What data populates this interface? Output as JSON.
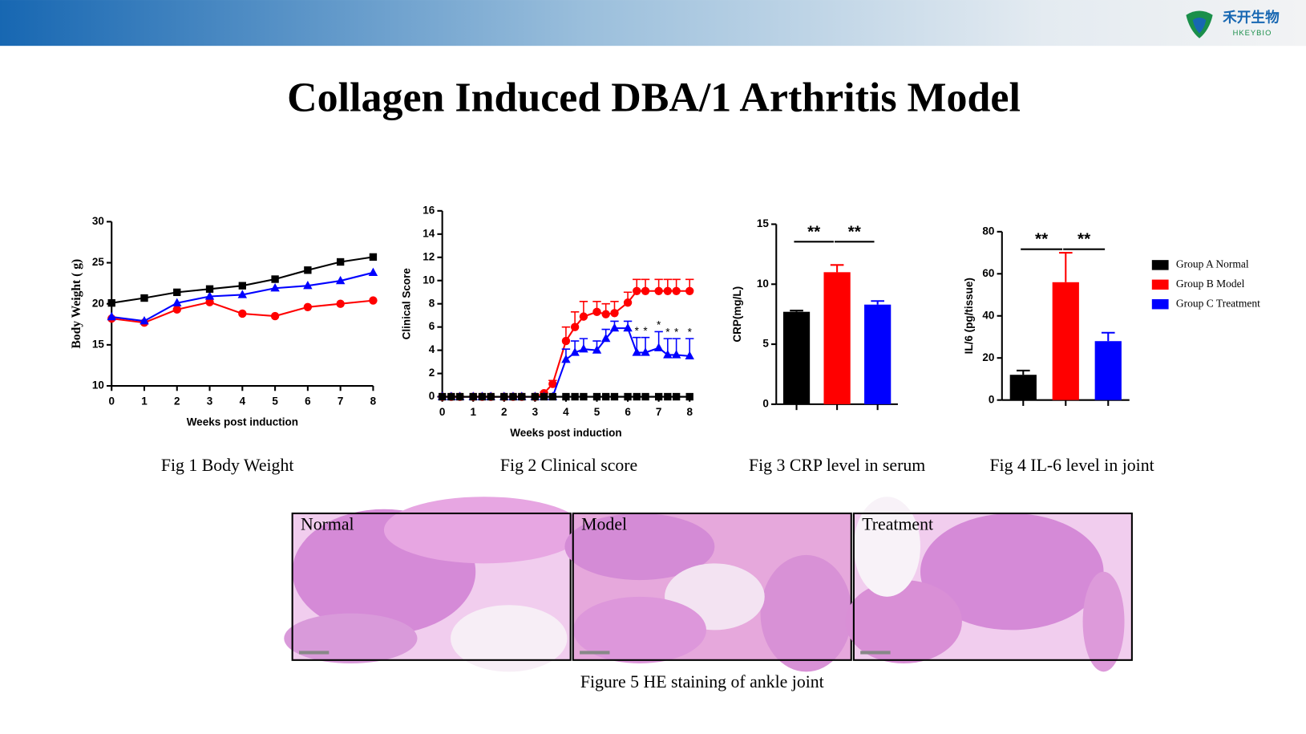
{
  "title": "Collagen Induced DBA/1 Arthritis Model",
  "logo": {
    "name": "禾开生物",
    "sub": "HKEYBIO"
  },
  "chart_data": [
    {
      "type": "line",
      "caption": "Fig 1 Body Weight",
      "ylabel": "Body Weight ( g)",
      "xlabel": "Weeks post induction",
      "x": [
        0,
        1,
        2,
        3,
        4,
        5,
        6,
        7,
        8
      ],
      "xlim": [
        0,
        8
      ],
      "xticks": [
        0,
        1,
        2,
        3,
        4,
        5,
        6,
        7,
        8
      ],
      "ylim": [
        10,
        30
      ],
      "yticks": [
        10,
        15,
        20,
        25,
        30
      ],
      "series": [
        {
          "color": "#ff0000",
          "marker": "circle",
          "values": [
            18.2,
            17.7,
            19.3,
            20.2,
            18.8,
            18.5,
            19.6,
            20.0,
            20.4
          ]
        },
        {
          "color": "#0000ff",
          "marker": "triangle",
          "values": [
            18.4,
            17.9,
            20.1,
            20.9,
            21.1,
            21.9,
            22.2,
            22.8,
            23.8
          ]
        },
        {
          "color": "#000000",
          "marker": "square",
          "values": [
            20.1,
            20.7,
            21.4,
            21.8,
            22.2,
            23.0,
            24.1,
            25.1,
            25.7
          ]
        }
      ]
    },
    {
      "type": "line",
      "caption": "Fig 2 Clinical score",
      "ylabel": "Clinical Score",
      "xlabel": "Weeks post induction",
      "x": [
        0,
        0.29,
        0.57,
        1,
        1.29,
        1.57,
        2,
        2.29,
        2.57,
        3,
        3.29,
        3.57,
        4,
        4.29,
        4.57,
        5,
        5.29,
        5.57,
        6,
        6.29,
        6.57,
        7,
        7.29,
        7.57,
        8
      ],
      "xlim": [
        0,
        8
      ],
      "xticks": [
        0,
        1,
        2,
        3,
        4,
        5,
        6,
        7,
        8
      ],
      "ylim": [
        0,
        16
      ],
      "yticks": [
        0,
        2,
        4,
        6,
        8,
        10,
        12,
        14,
        16
      ],
      "annotations": [
        "*",
        "*",
        "*",
        "*",
        "*",
        "*"
      ],
      "series": [
        {
          "color": "#ff0000",
          "marker": "circle",
          "values": [
            0,
            0,
            0,
            0,
            0,
            0,
            0,
            0,
            0,
            0,
            0.3,
            1.1,
            4.8,
            6.0,
            6.9,
            7.3,
            7.1,
            7.2,
            8.1,
            9.1,
            9.1,
            9.1,
            9.1,
            9.1,
            9.1
          ],
          "errors": [
            0,
            0,
            0,
            0,
            0,
            0,
            0,
            0,
            0,
            0,
            0.1,
            0.3,
            1.2,
            1.3,
            1.3,
            0.9,
            0.9,
            1.0,
            0.9,
            1.0,
            1.0,
            1.0,
            1.0,
            1.0,
            1.0
          ]
        },
        {
          "color": "#0000ff",
          "marker": "triangle",
          "values": [
            0,
            0,
            0,
            0,
            0,
            0,
            0,
            0,
            0,
            0,
            0,
            0,
            3.2,
            3.8,
            4.1,
            4.0,
            5.0,
            5.9,
            5.9,
            3.8,
            3.8,
            4.2,
            3.6,
            3.6,
            3.5
          ],
          "errors": [
            0,
            0,
            0,
            0,
            0,
            0,
            0,
            0,
            0,
            0,
            0,
            0,
            0.9,
            1.0,
            0.9,
            0.8,
            0.8,
            0.6,
            0.6,
            1.3,
            1.3,
            1.4,
            1.4,
            1.4,
            1.5
          ]
        },
        {
          "color": "#000000",
          "marker": "square",
          "values": [
            0,
            0,
            0,
            0,
            0,
            0,
            0,
            0,
            0,
            0,
            0,
            0,
            0,
            0,
            0,
            0,
            0,
            0,
            0,
            0,
            0,
            0,
            0,
            0,
            0
          ]
        }
      ]
    },
    {
      "type": "bar",
      "caption": "Fig 3 CRP level in serum",
      "ylabel": "CRP(mg/L)",
      "categories": [
        null,
        null,
        null
      ],
      "values": [
        7.7,
        11.0,
        8.3
      ],
      "errors": [
        0.1,
        0.6,
        0.3
      ],
      "colors": [
        "#000000",
        "#ff0000",
        "#0000ff"
      ],
      "ylim": [
        0,
        15
      ],
      "yticks": [
        0,
        5,
        10,
        15
      ],
      "annotations": [
        "**",
        "**"
      ]
    },
    {
      "type": "bar",
      "caption": "Fig 4 IL-6 level in joint",
      "ylabel": "IL/6 (pg/tissue)",
      "categories": [
        null,
        null,
        null
      ],
      "values": [
        12,
        56,
        28
      ],
      "errors": [
        2,
        14,
        4
      ],
      "colors": [
        "#000000",
        "#ff0000",
        "#0000ff"
      ],
      "ylim": [
        0,
        80
      ],
      "yticks": [
        0,
        20,
        40,
        60,
        80
      ],
      "annotations": [
        "**",
        "**"
      ],
      "legend": [
        {
          "name": "Group A Normal",
          "color": "#000000"
        },
        {
          "name": "Group B Model",
          "color": "#ff0000"
        },
        {
          "name": "Group C Treatment",
          "color": "#0000ff"
        }
      ]
    }
  ],
  "figure5": {
    "panels": [
      "Normal",
      "Model",
      "Treatment"
    ],
    "caption": "Figure 5 HE staining of ankle joint"
  }
}
